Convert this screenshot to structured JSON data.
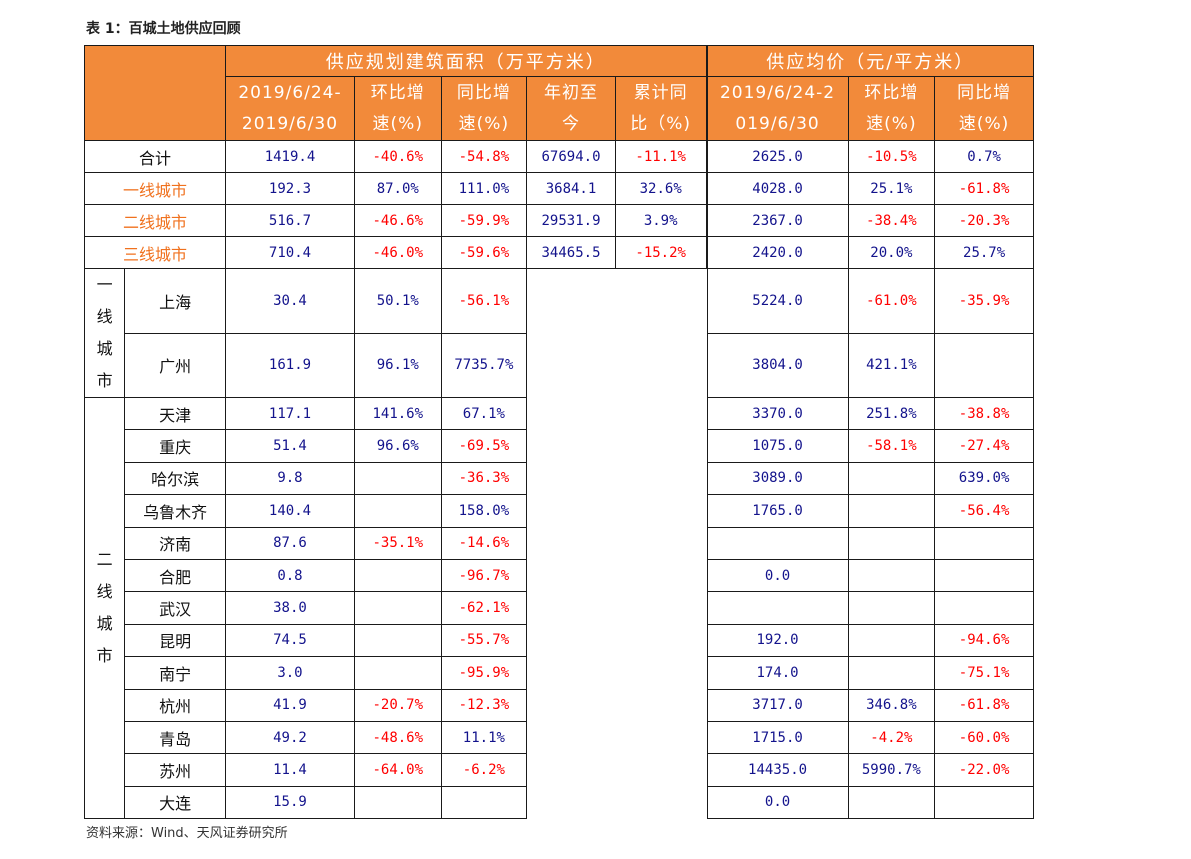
{
  "title": "表 1：百城土地供应回顾",
  "source": "资料来源：Wind、天风证券研究所",
  "colors": {
    "header_bg": "#f28a3a",
    "positive": "#13138c",
    "negative": "#ff0000",
    "tier_label": "#f0711e"
  },
  "header": {
    "supply_area": "供应规划建筑面积（万平方米）",
    "avg_price": "供应均价（元/平方米）",
    "sub_a": [
      "2019/6/24-",
      "2019/6/30",
      "环比增",
      "速(%)",
      "同比增",
      "速(%)",
      "年初至",
      "今",
      "累计同",
      "比（%)"
    ],
    "sub_b": [
      "2019/6/24-2",
      "019/6/30",
      "环比增",
      "速(%)",
      "同比增",
      "速(%)"
    ]
  },
  "totals": [
    {
      "name": "合计",
      "v": [
        "1419.4",
        "-40.6%",
        "-54.8%",
        "67694.0",
        "-11.1%",
        "2625.0",
        "-10.5%",
        "0.7%"
      ]
    },
    {
      "name": "一线城市",
      "v": [
        "192.3",
        "87.0%",
        "111.0%",
        "3684.1",
        "32.6%",
        "4028.0",
        "25.1%",
        "-61.8%"
      ]
    },
    {
      "name": "二线城市",
      "v": [
        "516.7",
        "-46.6%",
        "-59.9%",
        "29531.9",
        "3.9%",
        "2367.0",
        "-38.4%",
        "-20.3%"
      ]
    },
    {
      "name": "三线城市",
      "v": [
        "710.4",
        "-46.0%",
        "-59.6%",
        "34465.5",
        "-15.2%",
        "2420.0",
        "20.0%",
        "25.7%"
      ]
    }
  ],
  "groups": {
    "tier1": [
      "一",
      "线",
      "城",
      "市"
    ],
    "tier2": [
      "二",
      "线",
      "城",
      "市"
    ]
  },
  "cities": [
    {
      "name": "上海",
      "v": [
        "30.4",
        "50.1%",
        "-56.1%",
        "5224.0",
        "-61.0%",
        "-35.9%"
      ]
    },
    {
      "name": "广州",
      "v": [
        "161.9",
        "96.1%",
        "7735.7%",
        "3804.0",
        "421.1%",
        ""
      ]
    },
    {
      "name": "天津",
      "v": [
        "117.1",
        "141.6%",
        "67.1%",
        "3370.0",
        "251.8%",
        "-38.8%"
      ]
    },
    {
      "name": "重庆",
      "v": [
        "51.4",
        "96.6%",
        "-69.5%",
        "1075.0",
        "-58.1%",
        "-27.4%"
      ]
    },
    {
      "name": "哈尔滨",
      "v": [
        "9.8",
        "",
        "-36.3%",
        "3089.0",
        "",
        "639.0%"
      ]
    },
    {
      "name": "乌鲁木齐",
      "v": [
        "140.4",
        "",
        "158.0%",
        "1765.0",
        "",
        "-56.4%"
      ]
    },
    {
      "name": "济南",
      "v": [
        "87.6",
        "-35.1%",
        "-14.6%",
        "",
        "",
        ""
      ]
    },
    {
      "name": "合肥",
      "v": [
        "0.8",
        "",
        "-96.7%",
        "0.0",
        "",
        ""
      ]
    },
    {
      "name": "武汉",
      "v": [
        "38.0",
        "",
        "-62.1%",
        "",
        "",
        ""
      ]
    },
    {
      "name": "昆明",
      "v": [
        "74.5",
        "",
        "-55.7%",
        "192.0",
        "",
        "-94.6%"
      ]
    },
    {
      "name": "南宁",
      "v": [
        "3.0",
        "",
        "-95.9%",
        "174.0",
        "",
        "-75.1%"
      ]
    },
    {
      "name": "杭州",
      "v": [
        "41.9",
        "-20.7%",
        "-12.3%",
        "3717.0",
        "346.8%",
        "-61.8%"
      ]
    },
    {
      "name": "青岛",
      "v": [
        "49.2",
        "-48.6%",
        "11.1%",
        "1715.0",
        "-4.2%",
        "-60.0%"
      ]
    },
    {
      "name": "苏州",
      "v": [
        "11.4",
        "-64.0%",
        "-6.2%",
        "14435.0",
        "5990.7%",
        "-22.0%"
      ]
    },
    {
      "name": "大连",
      "v": [
        "15.9",
        "",
        "",
        "0.0",
        "",
        ""
      ]
    }
  ]
}
